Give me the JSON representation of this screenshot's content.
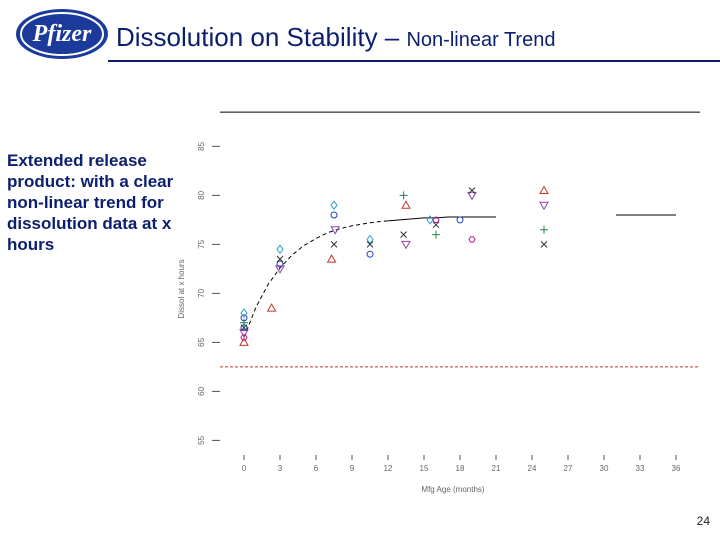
{
  "header": {
    "logo_text": "Pfizer",
    "title_main": "Dissolution on Stability – ",
    "title_sub": "Non-linear Trend"
  },
  "sidebar": {
    "text": "Extended release product: with a clear non-linear trend for dissolution data at x hours"
  },
  "footer": {
    "page_number": "24"
  },
  "colors": {
    "brand_blue": "#0b1f6e",
    "limit_line": "#c0392b",
    "fit_line": "#000000"
  },
  "chart_data": {
    "type": "scatter",
    "xlabel": "Mfg Age (months)",
    "ylabel": "Dissol at x hours",
    "xlim": [
      -2,
      38
    ],
    "ylim": [
      53,
      88
    ],
    "x_ticks": [
      0,
      3,
      6,
      9,
      12,
      15,
      18,
      21,
      24,
      27,
      30,
      33,
      36
    ],
    "y_ticks": [
      55,
      60,
      65,
      70,
      75,
      80,
      85
    ],
    "y_tick_labels": [
      "55",
      "60",
      "65",
      "70",
      "75",
      "80",
      "85"
    ],
    "lower_limit": 62.5,
    "reference_line_y": 88.5,
    "fit_curve": {
      "x": [
        0,
        1,
        2,
        3,
        4,
        5,
        6,
        7,
        8,
        9,
        10,
        11,
        12,
        13,
        14,
        15,
        16,
        17,
        18,
        19,
        20,
        21
      ],
      "y": [
        65.5,
        68.6,
        70.9,
        72.6,
        73.9,
        74.9,
        75.6,
        76.2,
        76.6,
        76.9,
        77.1,
        77.3,
        77.4,
        77.5,
        77.6,
        77.7,
        77.7,
        77.8,
        77.8,
        77.8,
        77.8,
        77.8
      ]
    },
    "extension_segment": {
      "x": [
        31,
        36
      ],
      "y": [
        78.0,
        78.0
      ]
    },
    "grid": false,
    "series": [
      {
        "marker": "circle",
        "color": "#1f3fbf",
        "points": [
          [
            0,
            67.5
          ],
          [
            0,
            66.5
          ],
          [
            3,
            73.0
          ],
          [
            7.5,
            78.0
          ],
          [
            10.5,
            74.0
          ],
          [
            18,
            77.5
          ]
        ]
      },
      {
        "marker": "diamond",
        "color": "#2a9fd6",
        "points": [
          [
            0,
            68.0
          ],
          [
            3,
            74.5
          ],
          [
            7.5,
            79.0
          ],
          [
            10.5,
            75.5
          ],
          [
            15.5,
            77.5
          ]
        ]
      },
      {
        "marker": "triangle",
        "color": "#c0392b",
        "points": [
          [
            0,
            65.0
          ],
          [
            2.3,
            68.5
          ],
          [
            7.3,
            73.5
          ],
          [
            13.5,
            79.0
          ],
          [
            25,
            80.5
          ]
        ]
      },
      {
        "marker": "triangle-down",
        "color": "#8e44ad",
        "points": [
          [
            0,
            66.0
          ],
          [
            3,
            72.5
          ],
          [
            7.6,
            76.5
          ],
          [
            13.5,
            75.0
          ],
          [
            25,
            79.0
          ],
          [
            19,
            80.0
          ]
        ]
      },
      {
        "marker": "plus",
        "color": "#1e8449",
        "points": [
          [
            0,
            67.0
          ],
          [
            13.3,
            80.0
          ],
          [
            16,
            76.0
          ],
          [
            25,
            76.5
          ]
        ]
      },
      {
        "marker": "cross",
        "color": "#333333",
        "points": [
          [
            0,
            66.5
          ],
          [
            3,
            73.5
          ],
          [
            7.5,
            75.0
          ],
          [
            10.5,
            75.0
          ],
          [
            13.3,
            76.0
          ],
          [
            16,
            77.0
          ],
          [
            19,
            80.5
          ],
          [
            25,
            75.0
          ]
        ]
      },
      {
        "marker": "hexagon",
        "color": "#c0178f",
        "points": [
          [
            0,
            65.5
          ],
          [
            16,
            77.5
          ],
          [
            19,
            75.5
          ]
        ]
      }
    ]
  }
}
